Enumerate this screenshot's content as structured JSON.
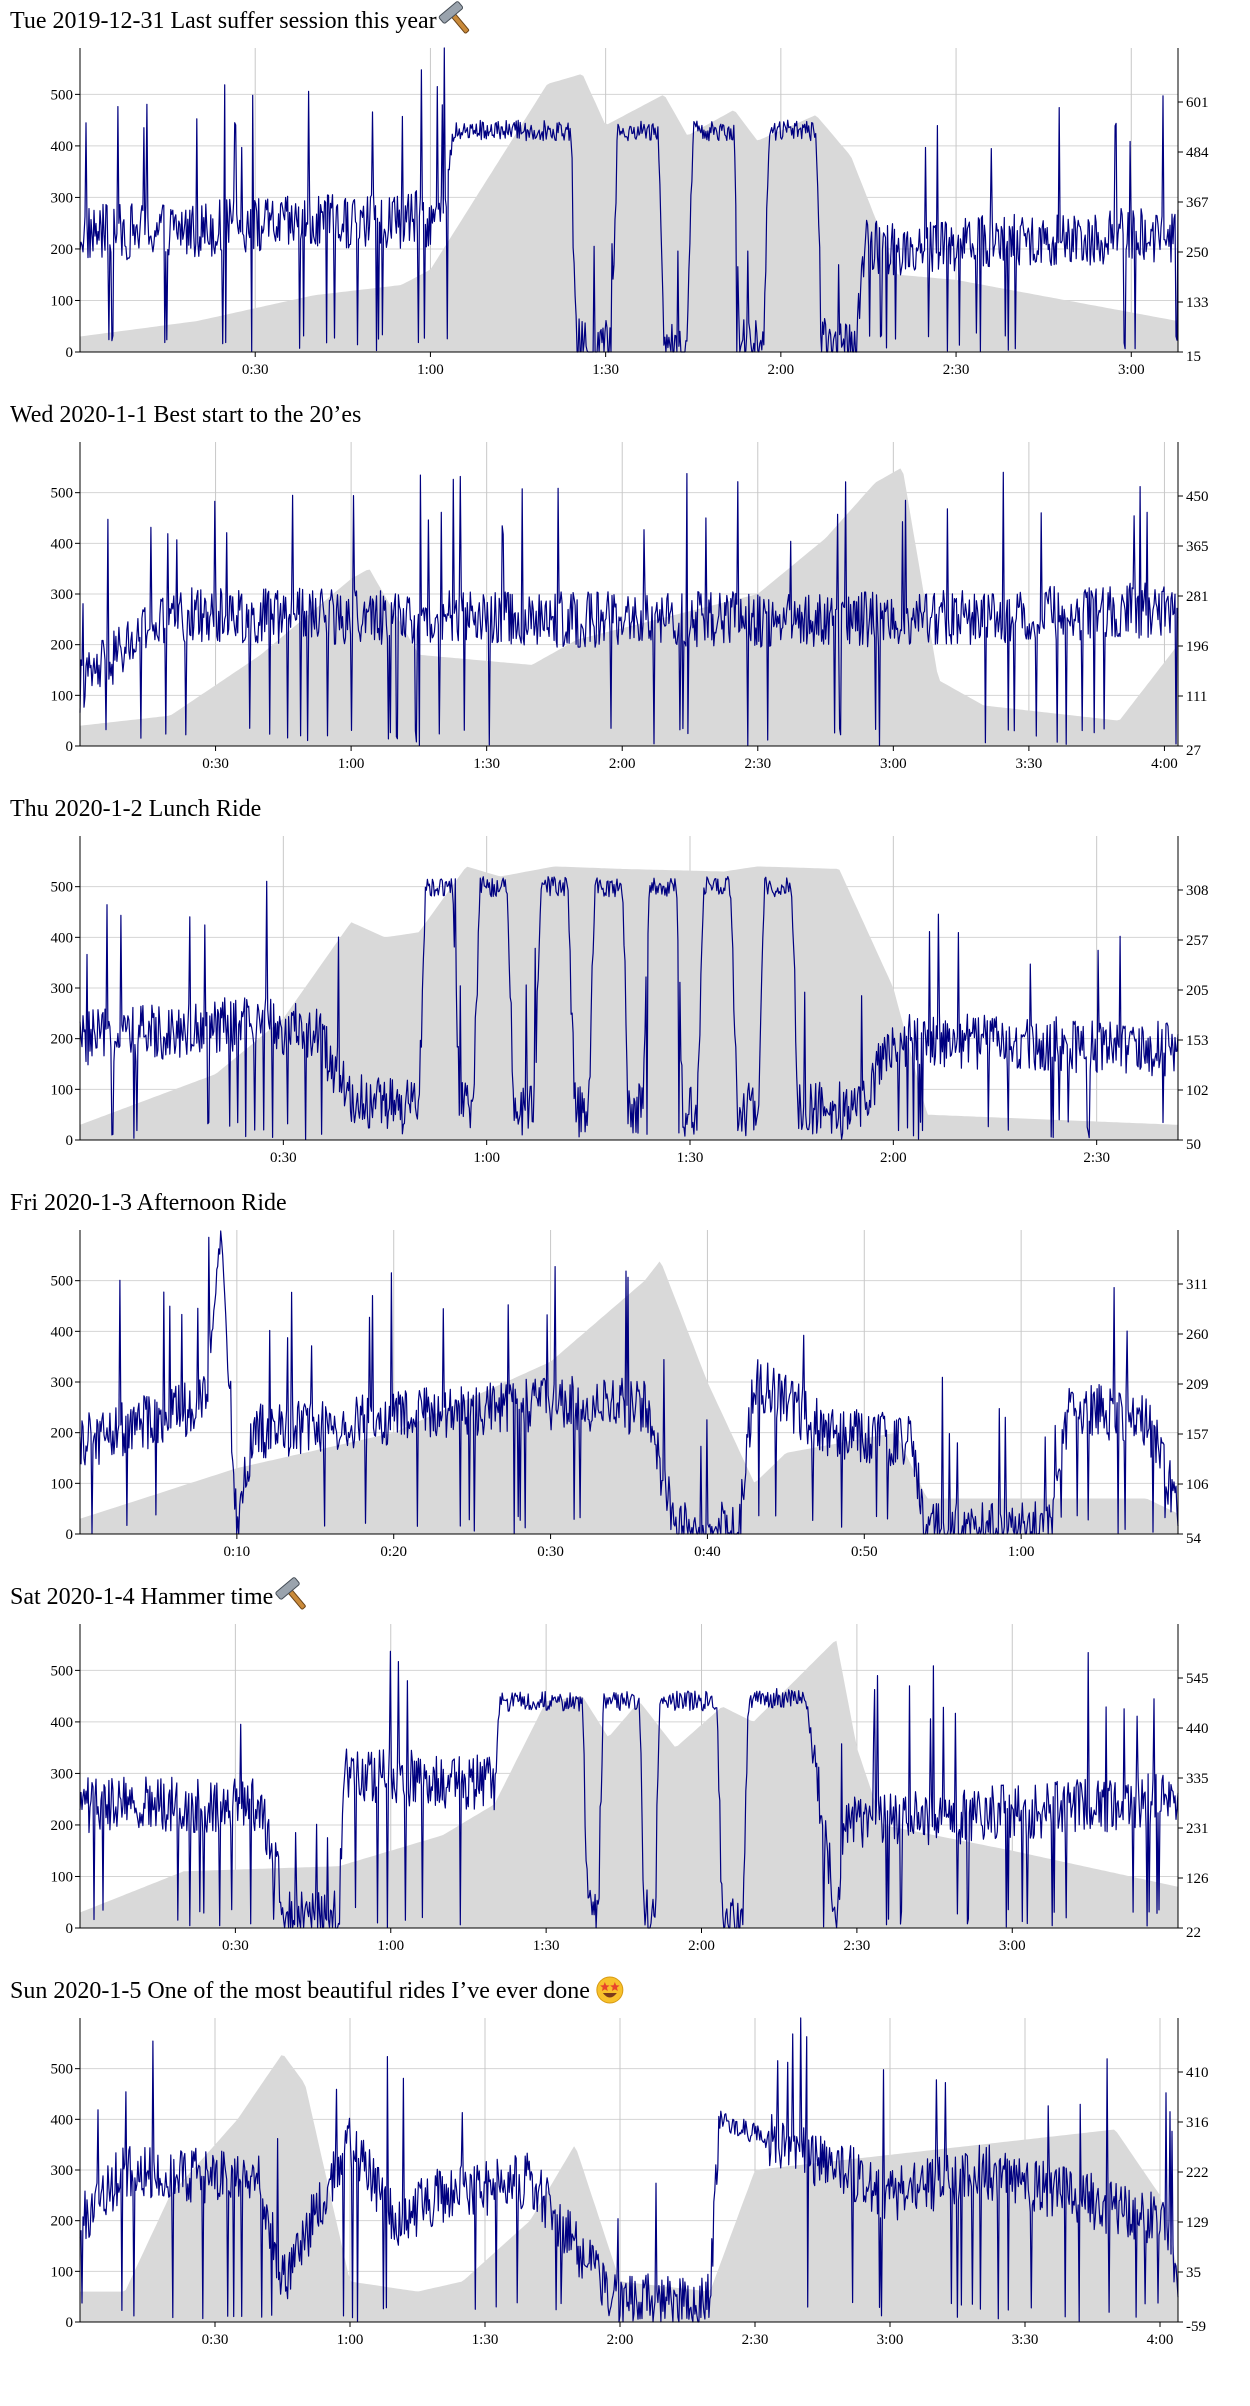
{
  "chart_data": [
    {
      "type": "line",
      "title": "Tue 2019-12-31 Last suffer session this year",
      "emoji": "hammer-icon",
      "duration_min": 188,
      "x_ticks": [
        "0:30",
        "1:00",
        "1:30",
        "2:00",
        "2:30",
        "3:00"
      ],
      "y_left": {
        "ticks": [
          0,
          100,
          200,
          300,
          400,
          500
        ],
        "range": [
          0,
          590
        ]
      },
      "y_right": {
        "ticks": [
          15,
          133,
          250,
          367,
          484,
          601
        ]
      },
      "power_profile": [
        [
          0,
          230
        ],
        [
          62,
          260
        ],
        [
          64,
          430
        ],
        [
          84,
          430
        ],
        [
          85,
          10
        ],
        [
          91,
          10
        ],
        [
          92,
          430
        ],
        [
          99,
          430
        ],
        [
          100,
          10
        ],
        [
          104,
          10
        ],
        [
          105,
          430
        ],
        [
          112,
          430
        ],
        [
          113,
          10
        ],
        [
          117,
          10
        ],
        [
          118,
          430
        ],
        [
          126,
          430
        ],
        [
          127,
          10
        ],
        [
          133,
          10
        ],
        [
          134,
          200
        ],
        [
          188,
          230
        ]
      ],
      "elevation_profile": [
        [
          0,
          30
        ],
        [
          20,
          60
        ],
        [
          40,
          110
        ],
        [
          55,
          130
        ],
        [
          60,
          160
        ],
        [
          80,
          520
        ],
        [
          86,
          540
        ],
        [
          90,
          440
        ],
        [
          100,
          500
        ],
        [
          104,
          420
        ],
        [
          112,
          470
        ],
        [
          116,
          410
        ],
        [
          126,
          460
        ],
        [
          132,
          380
        ],
        [
          140,
          150
        ],
        [
          150,
          140
        ],
        [
          188,
          60
        ]
      ],
      "series": [
        {
          "name": "",
          "color": "#000080"
        },
        {
          "name": "",
          "color": "#d9d9d9"
        }
      ],
      "grid": true
    },
    {
      "type": "line",
      "title": "Wed 2020-1-1 Best start to the 20’es",
      "emoji": "",
      "duration_min": 243,
      "x_ticks": [
        "0:30",
        "1:00",
        "1:30",
        "2:00",
        "2:30",
        "3:00",
        "3:30",
        "4:00"
      ],
      "y_left": {
        "ticks": [
          0,
          100,
          200,
          300,
          400,
          500
        ],
        "range": [
          0,
          600
        ]
      },
      "y_right": {
        "ticks": [
          27,
          111,
          196,
          281,
          365,
          450
        ]
      },
      "power_profile": [
        [
          0,
          120
        ],
        [
          15,
          230
        ],
        [
          25,
          260
        ],
        [
          100,
          250
        ],
        [
          180,
          250
        ],
        [
          243,
          270
        ]
      ],
      "elevation_profile": [
        [
          0,
          40
        ],
        [
          20,
          60
        ],
        [
          40,
          180
        ],
        [
          60,
          330
        ],
        [
          64,
          350
        ],
        [
          75,
          180
        ],
        [
          100,
          160
        ],
        [
          110,
          210
        ],
        [
          150,
          300
        ],
        [
          165,
          410
        ],
        [
          176,
          520
        ],
        [
          182,
          550
        ],
        [
          190,
          130
        ],
        [
          200,
          80
        ],
        [
          230,
          50
        ],
        [
          243,
          200
        ]
      ],
      "series": [
        {
          "name": "",
          "color": "#000080"
        },
        {
          "name": "",
          "color": "#d9d9d9"
        }
      ],
      "grid": true
    },
    {
      "type": "line",
      "title": "Thu 2020-1-2 Lunch Ride",
      "emoji": "",
      "duration_min": 162,
      "x_ticks": [
        "0:30",
        "1:00",
        "1:30",
        "2:00",
        "2:30"
      ],
      "y_left": {
        "ticks": [
          0,
          100,
          200,
          300,
          400,
          500
        ],
        "range": [
          0,
          600
        ]
      },
      "y_right": {
        "ticks": [
          50,
          102,
          153,
          205,
          257,
          308
        ]
      },
      "power_profile": [
        [
          0,
          200
        ],
        [
          25,
          230
        ],
        [
          35,
          210
        ],
        [
          40,
          80
        ],
        [
          50,
          60
        ],
        [
          51,
          500
        ],
        [
          55,
          500
        ],
        [
          56,
          60
        ],
        [
          58,
          60
        ],
        [
          59,
          500
        ],
        [
          63,
          500
        ],
        [
          64,
          60
        ],
        [
          67,
          60
        ],
        [
          68,
          500
        ],
        [
          72,
          500
        ],
        [
          73,
          60
        ],
        [
          75,
          60
        ],
        [
          76,
          500
        ],
        [
          80,
          500
        ],
        [
          81,
          60
        ],
        [
          83,
          60
        ],
        [
          84,
          500
        ],
        [
          88,
          500
        ],
        [
          89,
          60
        ],
        [
          91,
          60
        ],
        [
          92,
          500
        ],
        [
          96,
          500
        ],
        [
          97,
          60
        ],
        [
          100,
          60
        ],
        [
          101,
          500
        ],
        [
          105,
          500
        ],
        [
          106,
          60
        ],
        [
          110,
          60
        ],
        [
          115,
          60
        ],
        [
          120,
          200
        ],
        [
          162,
          180
        ]
      ],
      "elevation_profile": [
        [
          0,
          30
        ],
        [
          20,
          130
        ],
        [
          30,
          240
        ],
        [
          40,
          430
        ],
        [
          45,
          400
        ],
        [
          50,
          410
        ],
        [
          57,
          540
        ],
        [
          62,
          520
        ],
        [
          70,
          540
        ],
        [
          80,
          535
        ],
        [
          95,
          530
        ],
        [
          100,
          540
        ],
        [
          112,
          535
        ],
        [
          120,
          300
        ],
        [
          125,
          50
        ],
        [
          162,
          30
        ]
      ],
      "series": [
        {
          "name": "",
          "color": "#000080"
        },
        {
          "name": "",
          "color": "#d9d9d9"
        }
      ],
      "grid": true
    },
    {
      "type": "line",
      "title": "Fri 2020-1-3 Afternoon Ride",
      "emoji": "",
      "duration_min": 70,
      "x_ticks": [
        "0:10",
        "0:20",
        "0:30",
        "0:40",
        "0:50",
        "1:00"
      ],
      "y_left": {
        "ticks": [
          0,
          100,
          200,
          300,
          400,
          500
        ],
        "range": [
          0,
          600
        ]
      },
      "y_right": {
        "ticks": [
          54,
          106,
          157,
          209,
          260,
          311
        ]
      },
      "power_profile": [
        [
          0,
          180
        ],
        [
          8,
          260
        ],
        [
          9,
          600
        ],
        [
          10,
          20
        ],
        [
          11,
          200
        ],
        [
          30,
          260
        ],
        [
          36,
          250
        ],
        [
          38,
          10
        ],
        [
          42,
          10
        ],
        [
          43,
          300
        ],
        [
          48,
          200
        ],
        [
          53,
          180
        ],
        [
          54,
          10
        ],
        [
          62,
          10
        ],
        [
          63,
          250
        ],
        [
          68,
          230
        ],
        [
          70,
          50
        ]
      ],
      "elevation_profile": [
        [
          0,
          30
        ],
        [
          10,
          130
        ],
        [
          20,
          200
        ],
        [
          30,
          340
        ],
        [
          36,
          500
        ],
        [
          37,
          540
        ],
        [
          40,
          300
        ],
        [
          43,
          100
        ],
        [
          45,
          160
        ],
        [
          52,
          200
        ],
        [
          54,
          70
        ],
        [
          68,
          70
        ],
        [
          70,
          40
        ]
      ],
      "series": [
        {
          "name": "",
          "color": "#000080"
        },
        {
          "name": "",
          "color": "#d9d9d9"
        }
      ],
      "grid": true
    },
    {
      "type": "line",
      "title": "Sat 2020-1-4 Hammer time",
      "emoji": "hammer-icon",
      "duration_min": 212,
      "x_ticks": [
        "0:30",
        "1:00",
        "1:30",
        "2:00",
        "2:30",
        "3:00"
      ],
      "y_left": {
        "ticks": [
          0,
          100,
          200,
          300,
          400,
          500
        ],
        "range": [
          0,
          590
        ]
      },
      "y_right": {
        "ticks": [
          22,
          126,
          231,
          335,
          440,
          545
        ]
      },
      "power_profile": [
        [
          0,
          240
        ],
        [
          35,
          240
        ],
        [
          40,
          20
        ],
        [
          50,
          20
        ],
        [
          51,
          300
        ],
        [
          80,
          280
        ],
        [
          81,
          440
        ],
        [
          97,
          440
        ],
        [
          98,
          20
        ],
        [
          100,
          20
        ],
        [
          101,
          440
        ],
        [
          108,
          440
        ],
        [
          109,
          20
        ],
        [
          111,
          20
        ],
        [
          112,
          440
        ],
        [
          123,
          440
        ],
        [
          124,
          20
        ],
        [
          128,
          20
        ],
        [
          129,
          440
        ],
        [
          140,
          450
        ],
        [
          146,
          20
        ],
        [
          148,
          200
        ],
        [
          212,
          250
        ]
      ],
      "elevation_profile": [
        [
          0,
          30
        ],
        [
          20,
          110
        ],
        [
          50,
          120
        ],
        [
          70,
          180
        ],
        [
          80,
          240
        ],
        [
          90,
          440
        ],
        [
          97,
          450
        ],
        [
          102,
          370
        ],
        [
          108,
          440
        ],
        [
          115,
          350
        ],
        [
          124,
          430
        ],
        [
          130,
          400
        ],
        [
          140,
          500
        ],
        [
          146,
          560
        ],
        [
          150,
          350
        ],
        [
          155,
          200
        ],
        [
          180,
          150
        ],
        [
          212,
          80
        ]
      ],
      "series": [
        {
          "name": "",
          "color": "#000080"
        },
        {
          "name": "",
          "color": "#d9d9d9"
        }
      ],
      "grid": true
    },
    {
      "type": "line",
      "title": "Sun 2020-1-5 One of the most beautiful rides I’ve ever done",
      "emoji": "star-struck-icon",
      "duration_min": 244,
      "x_ticks": [
        "0:30",
        "1:00",
        "1:30",
        "2:00",
        "2:30",
        "3:00",
        "3:30",
        "4:00"
      ],
      "y_left": {
        "ticks": [
          0,
          100,
          200,
          300,
          400,
          500
        ],
        "range": [
          0,
          600
        ]
      },
      "y_right": {
        "ticks": [
          -59,
          35,
          129,
          222,
          316,
          410
        ]
      },
      "power_profile": [
        [
          0,
          200
        ],
        [
          10,
          300
        ],
        [
          40,
          280
        ],
        [
          45,
          80
        ],
        [
          60,
          350
        ],
        [
          70,
          200
        ],
        [
          80,
          250
        ],
        [
          100,
          280
        ],
        [
          110,
          150
        ],
        [
          120,
          40
        ],
        [
          125,
          40
        ],
        [
          140,
          40
        ],
        [
          142,
          400
        ],
        [
          170,
          300
        ],
        [
          180,
          250
        ],
        [
          200,
          300
        ],
        [
          240,
          200
        ],
        [
          244,
          100
        ]
      ],
      "elevation_profile": [
        [
          0,
          60
        ],
        [
          10,
          60
        ],
        [
          20,
          250
        ],
        [
          35,
          400
        ],
        [
          45,
          530
        ],
        [
          50,
          470
        ],
        [
          60,
          80
        ],
        [
          75,
          60
        ],
        [
          85,
          80
        ],
        [
          100,
          200
        ],
        [
          110,
          350
        ],
        [
          120,
          80
        ],
        [
          140,
          60
        ],
        [
          150,
          300
        ],
        [
          170,
          320
        ],
        [
          200,
          350
        ],
        [
          230,
          380
        ],
        [
          240,
          250
        ],
        [
          244,
          100
        ]
      ],
      "series": [
        {
          "name": "",
          "color": "#000080"
        },
        {
          "name": "",
          "color": "#d9d9d9"
        }
      ],
      "grid": true
    }
  ]
}
